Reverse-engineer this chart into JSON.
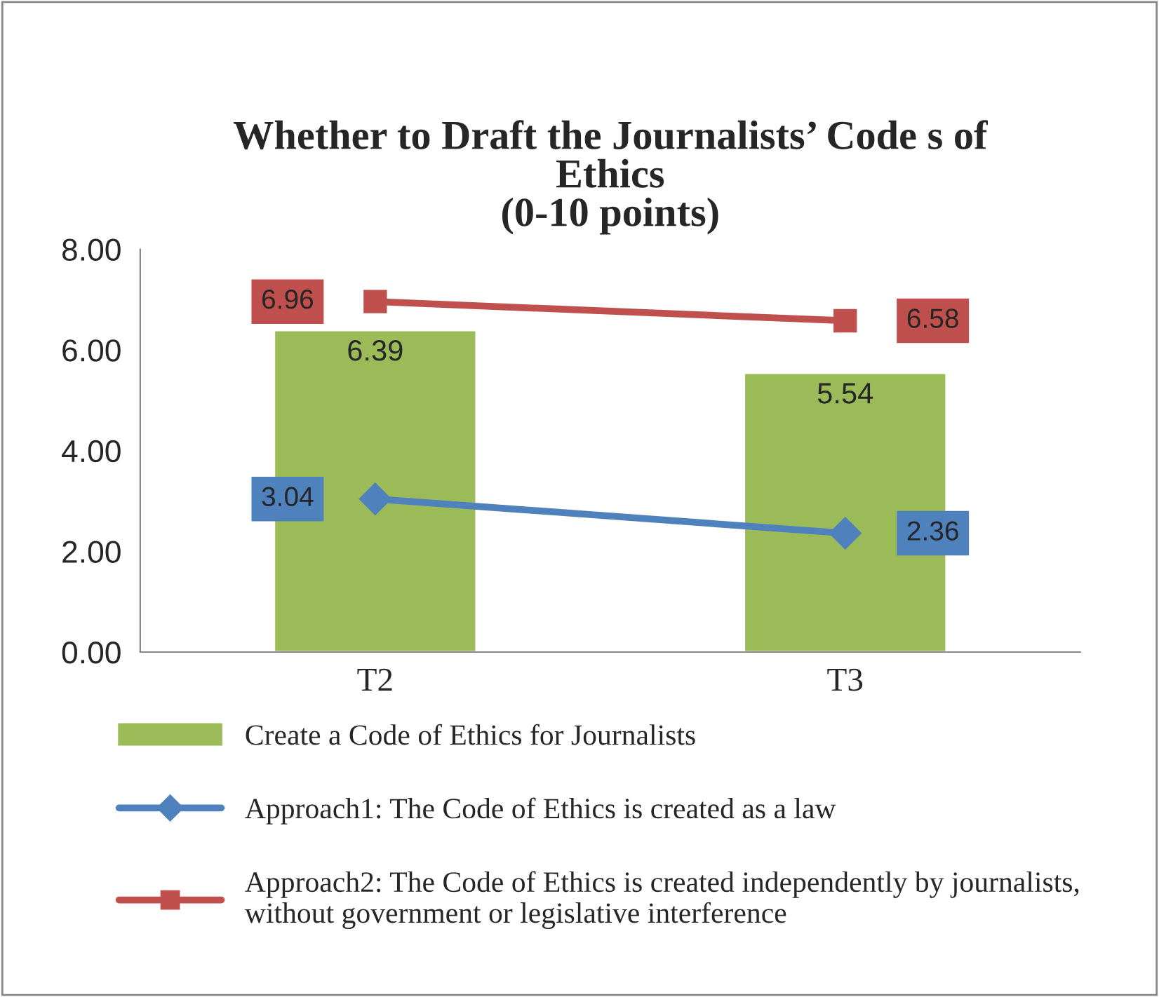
{
  "chart_data": {
    "type": "bar",
    "title": "Whether to Draft the Journalists’ Code s of\nEthics\n(0-10 points)",
    "categories": [
      "T2",
      "T3"
    ],
    "series": [
      {
        "name": "Create a Code of Ethics for Journalists",
        "color": "#9bbb59",
        "values": [
          6.39,
          5.54
        ]
      },
      {
        "name": "Approach1: The Code of Ethics is created as a law",
        "type": "line",
        "color": "#4f81bd",
        "marker": "diamond",
        "values": [
          3.04,
          2.36
        ]
      },
      {
        "name": "Approach2: The Code of Ethics is created independently by journalists,\nwithout government or legislative interference",
        "type": "line",
        "color": "#c0504d",
        "marker": "square",
        "values": [
          6.96,
          6.58
        ]
      }
    ],
    "ylim": [
      0,
      8
    ],
    "yticks": [
      {
        "value": 0,
        "label": "0.00"
      },
      {
        "value": 2,
        "label": "2.00"
      },
      {
        "value": 4,
        "label": "4.00"
      },
      {
        "value": 6,
        "label": "6.00"
      },
      {
        "value": 8,
        "label": "8.00"
      }
    ],
    "data_labels": true,
    "grid": false,
    "legend": "bottom"
  }
}
